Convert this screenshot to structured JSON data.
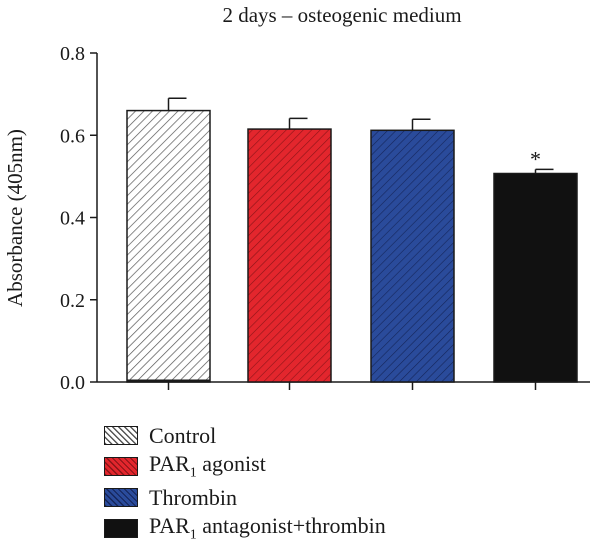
{
  "chart_data": {
    "type": "bar",
    "title": "2 days – osteogenic medium",
    "ylabel": "Absorbance (405nm)",
    "xlabel": "",
    "ylim": [
      0,
      0.8
    ],
    "yticks": [
      "0.0",
      "0.2",
      "0.4",
      "0.6",
      "0.8"
    ],
    "categories": [
      "Control",
      "PAR1 agonist",
      "Thrombin",
      "PAR1 antagonist+thrombin"
    ],
    "values": [
      0.66,
      0.615,
      0.612,
      0.507
    ],
    "errors": [
      0.03,
      0.026,
      0.027,
      0.01
    ],
    "significance": [
      "",
      "",
      "",
      "*"
    ],
    "colors": [
      "#ffffff",
      "#e3262d",
      "#2a4b9b",
      "#111111"
    ],
    "hatched": [
      true,
      true,
      true,
      false
    ],
    "grid": false
  },
  "legend": [
    {
      "pre": "Control",
      "sub": "",
      "post": ""
    },
    {
      "pre": "PAR",
      "sub": "1",
      "post": " agonist"
    },
    {
      "pre": "Thrombin",
      "sub": "",
      "post": ""
    },
    {
      "pre": "PAR",
      "sub": "1",
      "post": " antagonist+thrombin"
    }
  ]
}
